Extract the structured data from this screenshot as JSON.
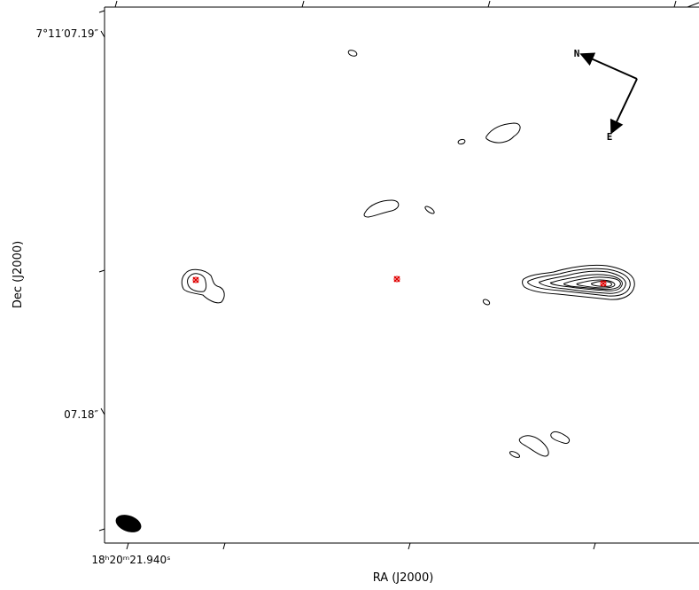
{
  "image": {
    "type": "radio contour map",
    "frame_color": "#000000",
    "contour_color": "#000000",
    "marker_color": "#e00000"
  },
  "axes": {
    "y_title": "Dec (J2000)",
    "x_title": "RA (J2000)",
    "y_ticks": [
      "7°11′07.19″",
      "07.18″"
    ],
    "x_ticks": [
      "18ʰ20ᵐ21.940ˢ"
    ]
  },
  "compass": {
    "north_label": "N",
    "east_label": "E"
  },
  "beam": {
    "shape": "filled ellipse",
    "color": "#000000"
  },
  "markers": {
    "count": 3,
    "icon": "red-cross-marker-icon"
  }
}
